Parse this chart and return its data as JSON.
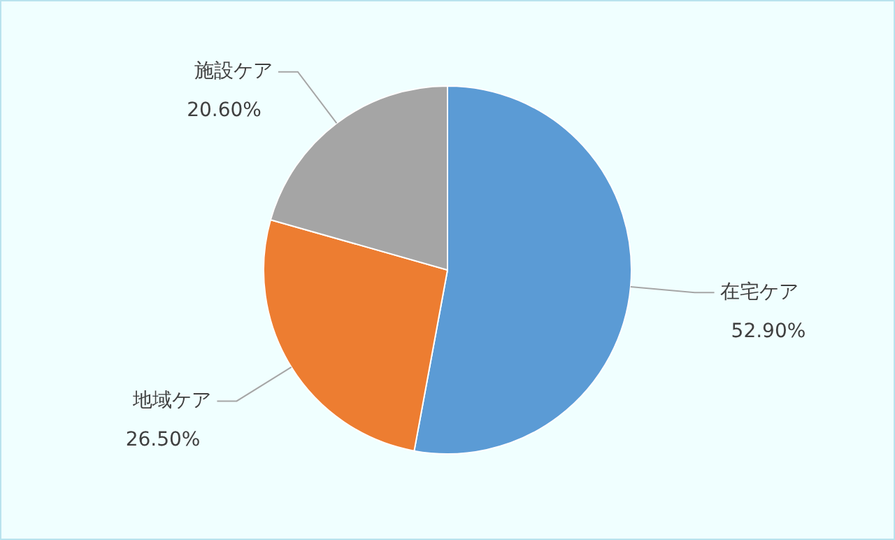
{
  "chart_data": {
    "type": "pie",
    "categories": [
      "在宅ケア",
      "地域ケア",
      "施設ケア"
    ],
    "values": [
      52.9,
      26.5,
      20.6
    ],
    "colors": [
      "#5b9bd5",
      "#ed7d31",
      "#a5a5a5"
    ],
    "value_labels": [
      "52.90%",
      "26.50%",
      "20.60%"
    ],
    "legend": false
  }
}
